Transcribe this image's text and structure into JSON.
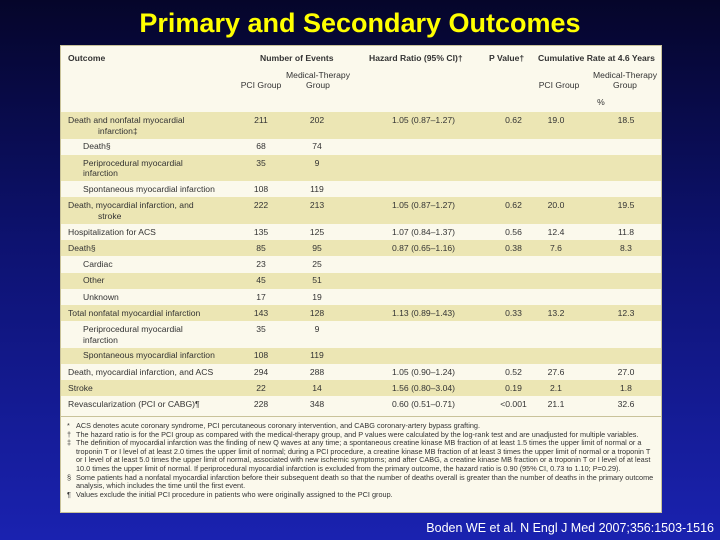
{
  "title": "Primary and Secondary Outcomes",
  "citation": "Boden WE et al. N Engl J Med 2007;356:1503-1516",
  "table": {
    "headers": {
      "outcome": "Outcome",
      "events": "Number of Events",
      "hazard": "Hazard Ratio (95% CI)†",
      "pvalue": "P Value†",
      "cumulative": "Cumulative Rate at 4.6 Years",
      "pci": "PCI Group",
      "med1": "Medical-Therapy",
      "med2": "Group",
      "percent": "%"
    },
    "rows": [
      {
        "label": [
          "Death and nonfatal myocardial",
          "infarction‡"
        ],
        "indent": 0,
        "pci": "211",
        "med": "202",
        "hr": "1.05 (0.87–1.27)",
        "p": "0.62",
        "cpci": "19.0",
        "cmed": "18.5"
      },
      {
        "label": [
          "Death§"
        ],
        "indent": 1,
        "pci": "68",
        "med": "74",
        "hr": "",
        "p": "",
        "cpci": "",
        "cmed": ""
      },
      {
        "label": [
          "Periprocedural myocardial",
          "infarction"
        ],
        "indent": 1,
        "pci": "35",
        "med": "9",
        "hr": "",
        "p": "",
        "cpci": "",
        "cmed": ""
      },
      {
        "label": [
          "Spontaneous myocardial infarction"
        ],
        "indent": 1,
        "pci": "108",
        "med": "119",
        "hr": "",
        "p": "",
        "cpci": "",
        "cmed": ""
      },
      {
        "label": [
          "Death, myocardial infarction, and",
          "stroke"
        ],
        "indent": 0,
        "pci": "222",
        "med": "213",
        "hr": "1.05 (0.87–1.27)",
        "p": "0.62",
        "cpci": "20.0",
        "cmed": "19.5"
      },
      {
        "label": [
          "Hospitalization for ACS"
        ],
        "indent": 0,
        "pci": "135",
        "med": "125",
        "hr": "1.07 (0.84–1.37)",
        "p": "0.56",
        "cpci": "12.4",
        "cmed": "11.8"
      },
      {
        "label": [
          "Death§"
        ],
        "indent": 0,
        "pci": "85",
        "med": "95",
        "hr": "0.87 (0.65–1.16)",
        "p": "0.38",
        "cpci": "7.6",
        "cmed": "8.3"
      },
      {
        "label": [
          "Cardiac"
        ],
        "indent": 1,
        "pci": "23",
        "med": "25",
        "hr": "",
        "p": "",
        "cpci": "",
        "cmed": ""
      },
      {
        "label": [
          "Other"
        ],
        "indent": 1,
        "pci": "45",
        "med": "51",
        "hr": "",
        "p": "",
        "cpci": "",
        "cmed": ""
      },
      {
        "label": [
          "Unknown"
        ],
        "indent": 1,
        "pci": "17",
        "med": "19",
        "hr": "",
        "p": "",
        "cpci": "",
        "cmed": ""
      },
      {
        "label": [
          "Total nonfatal myocardial infarction"
        ],
        "indent": 0,
        "pci": "143",
        "med": "128",
        "hr": "1.13 (0.89–1.43)",
        "p": "0.33",
        "cpci": "13.2",
        "cmed": "12.3"
      },
      {
        "label": [
          "Periprocedural myocardial",
          "infarction"
        ],
        "indent": 1,
        "pci": "35",
        "med": "9",
        "hr": "",
        "p": "",
        "cpci": "",
        "cmed": ""
      },
      {
        "label": [
          "Spontaneous myocardial infarction"
        ],
        "indent": 1,
        "pci": "108",
        "med": "119",
        "hr": "",
        "p": "",
        "cpci": "",
        "cmed": ""
      },
      {
        "label": [
          "Death, myocardial infarction, and ACS"
        ],
        "indent": 0,
        "pci": "294",
        "med": "288",
        "hr": "1.05 (0.90–1.24)",
        "p": "0.52",
        "cpci": "27.6",
        "cmed": "27.0"
      },
      {
        "label": [
          "Stroke"
        ],
        "indent": 0,
        "pci": "22",
        "med": "14",
        "hr": "1.56 (0.80–3.04)",
        "p": "0.19",
        "cpci": "2.1",
        "cmed": "1.8"
      },
      {
        "label": [
          "Revascularization (PCI or CABG)¶"
        ],
        "indent": 0,
        "pci": "228",
        "med": "348",
        "hr": "0.60 (0.51–0.71)",
        "p": "<0.001",
        "cpci": "21.1",
        "cmed": "32.6"
      }
    ],
    "footnotes": [
      {
        "mark": "*",
        "text": "ACS denotes acute coronary syndrome, PCI percutaneous coronary intervention, and CABG coronary-artery bypass grafting."
      },
      {
        "mark": "†",
        "text": "The hazard ratio is for the PCI group as compared with the medical-therapy group, and P values were calculated by the log-rank test and are unadjusted for multiple variables."
      },
      {
        "mark": "‡",
        "text": "The definition of myocardial infarction was the finding of new Q waves at any time; a spontaneous creatine kinase MB fraction of at least 1.5 times the upper limit of normal or a troponin T or I level of at least 2.0 times the upper limit of normal; during a PCI procedure, a creatine kinase MB fraction of at least 3 times the upper limit of normal or a troponin T or I level of at least 5.0 times the upper limit of normal, associated with new ischemic symptoms; and after CABG, a creatine kinase MB fraction or a troponin T or I level of at least 10.0 times the upper limit of normal. If periprocedural myocardial infarction is excluded from the primary outcome, the hazard ratio is 0.90 (95% CI, 0.73 to 1.10; P=0.29)."
      },
      {
        "mark": "§",
        "text": "Some patients had a nonfatal myocardial infarction before their subsequent death so that the number of deaths overall is greater than the number of deaths in the primary outcome analysis, which includes the time until the first event."
      },
      {
        "mark": "¶",
        "text": "Values exclude the initial PCI procedure in patients who were originally assigned to the PCI group."
      }
    ]
  }
}
